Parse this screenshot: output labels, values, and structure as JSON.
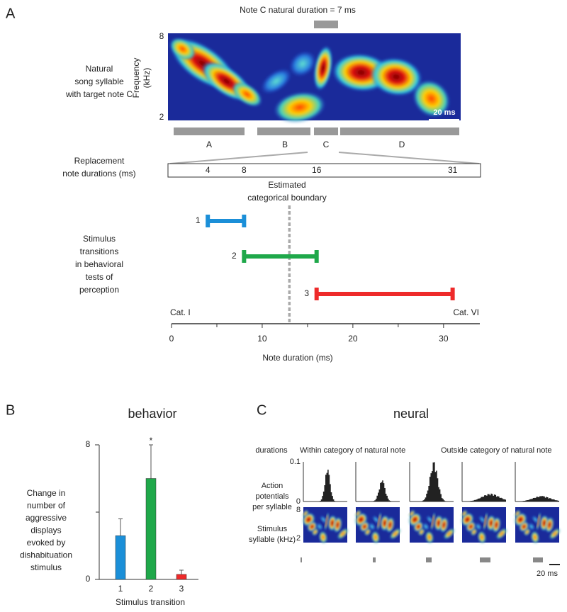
{
  "panel_a": {
    "label": "A",
    "natural_duration_label": "Note C natural duration = 7 ms",
    "spectrogram_label": [
      "Natural",
      "song syllable",
      "with target note C"
    ],
    "freq_axis_label": [
      "Frequency",
      "(kHz)"
    ],
    "freq_ticks": [
      8,
      2
    ],
    "scale_bar": "20 ms",
    "notes": [
      "A",
      "B",
      "C",
      "D"
    ],
    "replacement_label": [
      "Replacement",
      "note durations (ms)"
    ],
    "replacement_durations": [
      4,
      8,
      16,
      31
    ],
    "boundary_label": [
      "Estimated",
      "categorical boundary"
    ],
    "boundary_value": 13,
    "transitions_label": [
      "Stimulus",
      "transitions",
      "in behavioral",
      "tests of",
      "perception"
    ],
    "transitions": [
      {
        "name": "1",
        "color": "#1b8fd8",
        "start": 4,
        "end": 8
      },
      {
        "name": "2",
        "color": "#1fa84a",
        "start": 8,
        "end": 16
      },
      {
        "name": "3",
        "color": "#ee2a2a",
        "start": 16,
        "end": 31
      }
    ],
    "cat_left": "Cat. I",
    "cat_right": "Cat. VI",
    "xlim": [
      0,
      34
    ],
    "xticks": [
      0,
      10,
      20,
      30
    ],
    "minor_xticks": [
      5,
      15,
      25
    ],
    "xlabel": "Note duration (ms)"
  },
  "panel_b": {
    "label": "B",
    "title": "behavior",
    "ylabel": [
      "Change in",
      "number of",
      "aggressive",
      "displays",
      "evoked by",
      "dishabituation",
      "stimulus"
    ],
    "categories": [
      "1",
      "2",
      "3"
    ],
    "values": [
      2.6,
      6,
      0.3
    ],
    "errors": [
      1,
      2,
      0.25
    ],
    "colors": [
      "#1b8fd8",
      "#1fa84a",
      "#ee2a2a"
    ],
    "ylim": [
      0,
      8
    ],
    "yticks": [
      0,
      8
    ],
    "minor_yticks": [
      4
    ],
    "xlabel": "Stimulus transition",
    "annotation": "*"
  },
  "panel_c": {
    "label": "C",
    "title": "neural",
    "row_durations": "durations",
    "row_histogram": [
      "Action",
      "potentials",
      "per syllable"
    ],
    "row_spectrogram": [
      "Stimulus",
      "syllable (kHz)"
    ],
    "group_within": "Within category of natural note",
    "group_outside": "Outside category of natural note",
    "ylim": [
      0,
      0.1
    ],
    "yticks": [
      0.1,
      0
    ],
    "freq_ticks": [
      8,
      2
    ],
    "peaks": [
      0.082,
      0.054,
      0.1,
      0.02,
      0.014
    ],
    "scale_bar": "20 ms"
  }
}
